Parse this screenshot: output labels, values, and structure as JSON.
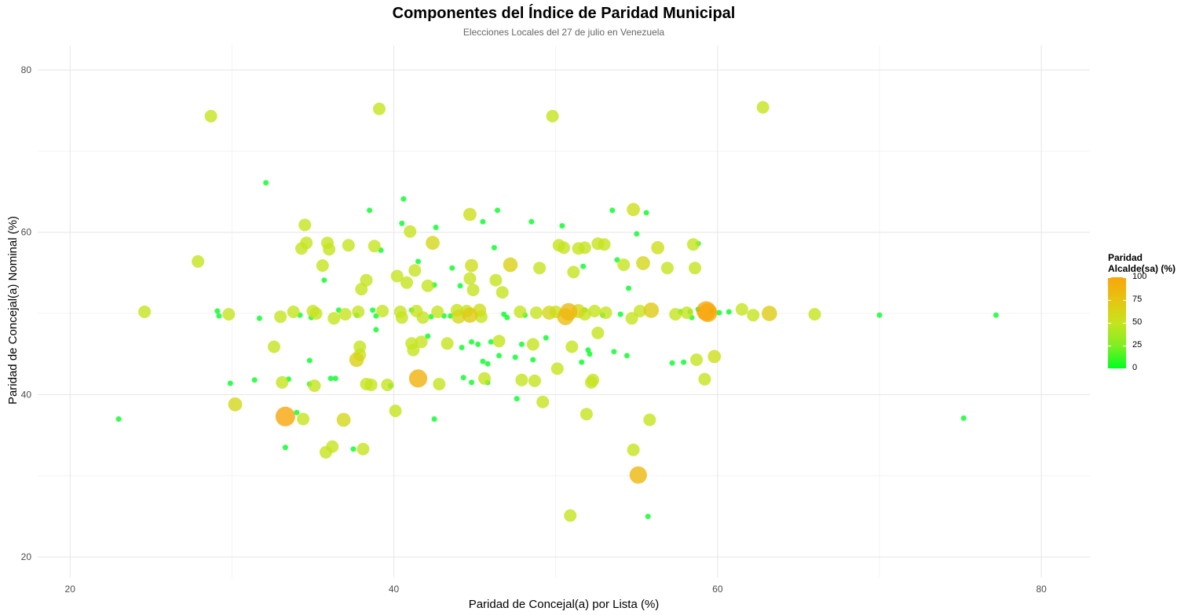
{
  "chart_data": {
    "type": "scatter",
    "title": "Componentes del Índice de Paridad Municipal",
    "subtitle": "Elecciones Locales del 27 de julio en Venezuela",
    "xlabel": "Paridad de Concejal(a) por Lista (%)",
    "ylabel": "Paridad de Concejal(a) Nominal (%)",
    "xlim": [
      18,
      83
    ],
    "ylim": [
      17.5,
      83
    ],
    "xticks": [
      20,
      40,
      60,
      80
    ],
    "yticks": [
      20,
      40,
      60,
      80
    ],
    "grid": true,
    "legend": {
      "title": "Paridad\nAlcalde(sa) (%)",
      "placement": "right",
      "ticks": [
        0,
        25,
        50,
        75,
        100
      ],
      "colors": [
        "#00ff22",
        "#80ee22",
        "#c6e41e",
        "#e7c411",
        "#f8a60b"
      ]
    },
    "points": [
      [
        23,
        37,
        0
      ],
      [
        24.6,
        50.2,
        50
      ],
      [
        27.9,
        56.4,
        50
      ],
      [
        28.7,
        74.3,
        50
      ],
      [
        29.1,
        50.3,
        0
      ],
      [
        29.2,
        49.7,
        0
      ],
      [
        29.8,
        49.9,
        50
      ],
      [
        29.9,
        41.4,
        0
      ],
      [
        30.2,
        38.8,
        60
      ],
      [
        31.4,
        41.8,
        0
      ],
      [
        31.7,
        49.4,
        0
      ],
      [
        32.1,
        66.1,
        0
      ],
      [
        32.6,
        45.9,
        50
      ],
      [
        33,
        49.6,
        50
      ],
      [
        33.1,
        41.5,
        50
      ],
      [
        33.3,
        37.3,
        100
      ],
      [
        33.3,
        33.5,
        0
      ],
      [
        33.5,
        41.9,
        0
      ],
      [
        33.8,
        50.2,
        50
      ],
      [
        34,
        37.8,
        0
      ],
      [
        34.2,
        49.8,
        0
      ],
      [
        34.3,
        58,
        50
      ],
      [
        34.4,
        37,
        50
      ],
      [
        34.5,
        60.9,
        50
      ],
      [
        34.6,
        58.7,
        50
      ],
      [
        34.8,
        44.2,
        0
      ],
      [
        34.9,
        49.5,
        0
      ],
      [
        34.8,
        41.3,
        0
      ],
      [
        35,
        50.3,
        50
      ],
      [
        35.1,
        41.1,
        50
      ],
      [
        35.2,
        50,
        50
      ],
      [
        35.6,
        55.9,
        50
      ],
      [
        35.7,
        54.1,
        0
      ],
      [
        35.8,
        32.9,
        50
      ],
      [
        35.9,
        58.7,
        50
      ],
      [
        36,
        57.9,
        50
      ],
      [
        36.1,
        42,
        0
      ],
      [
        36.2,
        33.6,
        50
      ],
      [
        36.3,
        49.4,
        50
      ],
      [
        36.6,
        50.4,
        0
      ],
      [
        36.4,
        42,
        0
      ],
      [
        36.9,
        36.9,
        60
      ],
      [
        37,
        49.9,
        50
      ],
      [
        37.2,
        58.4,
        50
      ],
      [
        37.5,
        33.3,
        0
      ],
      [
        37.7,
        44.3,
        65
      ],
      [
        37.7,
        49.8,
        0
      ],
      [
        37.8,
        50.2,
        50
      ],
      [
        37.9,
        45.9,
        50
      ],
      [
        37.9,
        44.9,
        50
      ],
      [
        38,
        53,
        50
      ],
      [
        38.1,
        33.3,
        50
      ],
      [
        38.3,
        54.1,
        50
      ],
      [
        38.5,
        62.7,
        0
      ],
      [
        38.3,
        41.3,
        50
      ],
      [
        38.6,
        41.2,
        50
      ],
      [
        38.8,
        58.3,
        50
      ],
      [
        38.9,
        49.7,
        0
      ],
      [
        38.9,
        48,
        0
      ],
      [
        38.7,
        50.4,
        0
      ],
      [
        39.1,
        75.2,
        50
      ],
      [
        39.2,
        57.8,
        0
      ],
      [
        39.3,
        50.3,
        50
      ],
      [
        39.6,
        41.2,
        50
      ],
      [
        39.8,
        41.1,
        0
      ],
      [
        40.2,
        54.6,
        50
      ],
      [
        40.1,
        38,
        50
      ],
      [
        40.5,
        61.1,
        0
      ],
      [
        40.6,
        64.1,
        0
      ],
      [
        40.4,
        50.2,
        50
      ],
      [
        40.5,
        49.5,
        50
      ],
      [
        40.8,
        53.8,
        50
      ],
      [
        41,
        60.1,
        50
      ],
      [
        41.1,
        46.3,
        50
      ],
      [
        41.1,
        50.4,
        0
      ],
      [
        41.2,
        45.5,
        50
      ],
      [
        41.3,
        55.3,
        50
      ],
      [
        41.4,
        50.3,
        50
      ],
      [
        41.5,
        56.4,
        0
      ],
      [
        41.5,
        42,
        90
      ],
      [
        41.7,
        46.5,
        50
      ],
      [
        41.8,
        49.5,
        50
      ],
      [
        42.1,
        47.2,
        0
      ],
      [
        42.1,
        53.4,
        50
      ],
      [
        42.3,
        49.6,
        0
      ],
      [
        42.4,
        58.7,
        60
      ],
      [
        42.5,
        37,
        0
      ],
      [
        42.5,
        53.5,
        0
      ],
      [
        42.6,
        60.6,
        0
      ],
      [
        42.7,
        50.2,
        50
      ],
      [
        42.8,
        41.3,
        50
      ],
      [
        43.1,
        49.7,
        0
      ],
      [
        43.3,
        46.3,
        50
      ],
      [
        43.5,
        49.7,
        0
      ],
      [
        43.6,
        55.6,
        0
      ],
      [
        43.9,
        50.4,
        50
      ],
      [
        44,
        49.6,
        60
      ],
      [
        44.1,
        53.4,
        0
      ],
      [
        44.2,
        45.8,
        0
      ],
      [
        44.3,
        42.1,
        0
      ],
      [
        44.5,
        50.3,
        50
      ],
      [
        44.7,
        49.8,
        70
      ],
      [
        44.7,
        62.2,
        55
      ],
      [
        44.8,
        55.9,
        55
      ],
      [
        44.8,
        46.5,
        0
      ],
      [
        44.7,
        54.3,
        50
      ],
      [
        44.9,
        52.9,
        50
      ],
      [
        44.8,
        41.5,
        0
      ],
      [
        45.2,
        46.2,
        0
      ],
      [
        45.3,
        50.4,
        55
      ],
      [
        45.4,
        49.6,
        50
      ],
      [
        45.5,
        44.1,
        0
      ],
      [
        45.5,
        61.3,
        0
      ],
      [
        45.6,
        42,
        50
      ],
      [
        45.8,
        41.5,
        0
      ],
      [
        45.8,
        43.8,
        0
      ],
      [
        46,
        46.5,
        0
      ],
      [
        46.2,
        58.1,
        0
      ],
      [
        46.3,
        54.1,
        50
      ],
      [
        46.4,
        62.7,
        0
      ],
      [
        46.5,
        44.8,
        0
      ],
      [
        46.5,
        46.6,
        50
      ],
      [
        46.7,
        52.6,
        50
      ],
      [
        46.8,
        49.9,
        0
      ],
      [
        47,
        49.5,
        0
      ],
      [
        47.2,
        56,
        65
      ],
      [
        47.5,
        44.6,
        0
      ],
      [
        47.6,
        39.5,
        0
      ],
      [
        47.8,
        50.2,
        50
      ],
      [
        47.9,
        41.8,
        50
      ],
      [
        47.9,
        46.2,
        0
      ],
      [
        48.1,
        49.8,
        0
      ],
      [
        48.5,
        61.3,
        0
      ],
      [
        48.6,
        44.3,
        0
      ],
      [
        48.6,
        46.2,
        50
      ],
      [
        48.7,
        41.7,
        50
      ],
      [
        48.8,
        50.1,
        50
      ],
      [
        49,
        55.6,
        50
      ],
      [
        49.2,
        39.1,
        50
      ],
      [
        49.4,
        47,
        0
      ],
      [
        49.6,
        50.1,
        60
      ],
      [
        49.8,
        74.3,
        50
      ],
      [
        50,
        50.2,
        50
      ],
      [
        50.1,
        43.2,
        50
      ],
      [
        50.2,
        58.4,
        50
      ],
      [
        50.4,
        60.8,
        0
      ],
      [
        50.5,
        58.1,
        50
      ],
      [
        50.6,
        49.6,
        80
      ],
      [
        50.8,
        50.2,
        85
      ],
      [
        50.9,
        25.1,
        50
      ],
      [
        51,
        45.9,
        50
      ],
      [
        51.1,
        55.1,
        50
      ],
      [
        51.4,
        50.3,
        60
      ],
      [
        51.4,
        58,
        50
      ],
      [
        51.6,
        44,
        0
      ],
      [
        51.7,
        55.8,
        0
      ],
      [
        51.8,
        49.9,
        50
      ],
      [
        51.8,
        50.4,
        0
      ],
      [
        51.8,
        58.1,
        50
      ],
      [
        51.9,
        37.6,
        50
      ],
      [
        52,
        45.5,
        0
      ],
      [
        52.1,
        45,
        0
      ],
      [
        52.2,
        41.5,
        50
      ],
      [
        52.3,
        41.8,
        50
      ],
      [
        52.4,
        50.3,
        50
      ],
      [
        52.6,
        47.6,
        50
      ],
      [
        52.6,
        58.6,
        50
      ],
      [
        52.9,
        49.8,
        0
      ],
      [
        53,
        58.5,
        50
      ],
      [
        53.1,
        50.1,
        50
      ],
      [
        53.5,
        62.7,
        0
      ],
      [
        53.6,
        45.3,
        0
      ],
      [
        53.8,
        56.6,
        0
      ],
      [
        54,
        49.9,
        0
      ],
      [
        54.2,
        56,
        50
      ],
      [
        54.4,
        44.8,
        0
      ],
      [
        54.5,
        53.1,
        0
      ],
      [
        54.7,
        49.4,
        50
      ],
      [
        54.8,
        33.2,
        50
      ],
      [
        54.8,
        62.8,
        55
      ],
      [
        55,
        59.8,
        0
      ],
      [
        55.1,
        30.1,
        85
      ],
      [
        55.2,
        50.3,
        50
      ],
      [
        55.4,
        56.2,
        60
      ],
      [
        55.6,
        62.4,
        0
      ],
      [
        55.7,
        25,
        0
      ],
      [
        55.8,
        36.9,
        50
      ],
      [
        55.9,
        50.4,
        70
      ],
      [
        56.3,
        58.1,
        55
      ],
      [
        56.9,
        55.6,
        50
      ],
      [
        57.2,
        43.9,
        0
      ],
      [
        57.4,
        49.9,
        50
      ],
      [
        57.7,
        50.2,
        0
      ],
      [
        57.9,
        44,
        0
      ],
      [
        58.1,
        50.1,
        50
      ],
      [
        58.3,
        50.2,
        0
      ],
      [
        58.4,
        49.5,
        0
      ],
      [
        58.5,
        58.5,
        50
      ],
      [
        58.6,
        55.6,
        50
      ],
      [
        58.7,
        44.3,
        50
      ],
      [
        58.8,
        58.6,
        0
      ],
      [
        58.8,
        50.5,
        0
      ],
      [
        59.2,
        41.9,
        50
      ],
      [
        59.3,
        50.3,
        100
      ],
      [
        59.4,
        50.1,
        95
      ],
      [
        59.6,
        50.3,
        0
      ],
      [
        59.8,
        44.7,
        55
      ],
      [
        60.1,
        50.1,
        0
      ],
      [
        60.7,
        50.2,
        0
      ],
      [
        61.5,
        50.5,
        50
      ],
      [
        62.2,
        49.8,
        50
      ],
      [
        62.8,
        75.4,
        50
      ],
      [
        63.2,
        50,
        70
      ],
      [
        66,
        49.9,
        50
      ],
      [
        70,
        49.8,
        0
      ],
      [
        75.2,
        37.1,
        0
      ],
      [
        77.2,
        49.8,
        0
      ]
    ]
  }
}
